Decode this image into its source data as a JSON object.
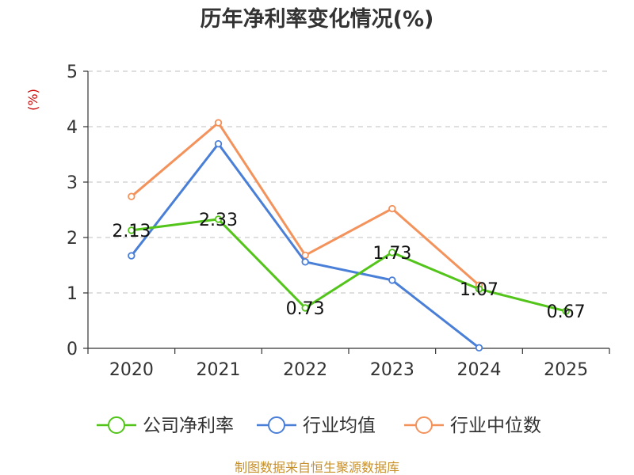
{
  "chart_data": {
    "type": "line",
    "title": "历年净利率变化情况(%)",
    "ylabel": "(%)",
    "xlabel": "",
    "categories": [
      "2020",
      "2021",
      "2022",
      "2023",
      "2024",
      "2025"
    ],
    "ylim": [
      0,
      5
    ],
    "yticks": [
      0,
      1,
      2,
      3,
      4,
      5
    ],
    "grid": true,
    "legend_position": "bottom",
    "series": [
      {
        "name": "公司净利率",
        "color": "#52c41a",
        "values": [
          2.13,
          2.33,
          0.73,
          1.73,
          1.07,
          0.67
        ],
        "labels": [
          "2.13",
          "2.33",
          "0.73",
          "1.73",
          "1.07",
          "0.67"
        ]
      },
      {
        "name": "行业均值",
        "color": "#4a7fd8",
        "values": [
          1.67,
          3.69,
          1.56,
          1.23,
          0.01,
          null
        ]
      },
      {
        "name": "行业中位数",
        "color": "#f4925b",
        "values": [
          2.74,
          4.07,
          1.68,
          2.52,
          1.14,
          null
        ]
      }
    ]
  },
  "footer": {
    "source": "制图数据来自恒生聚源数据库"
  }
}
